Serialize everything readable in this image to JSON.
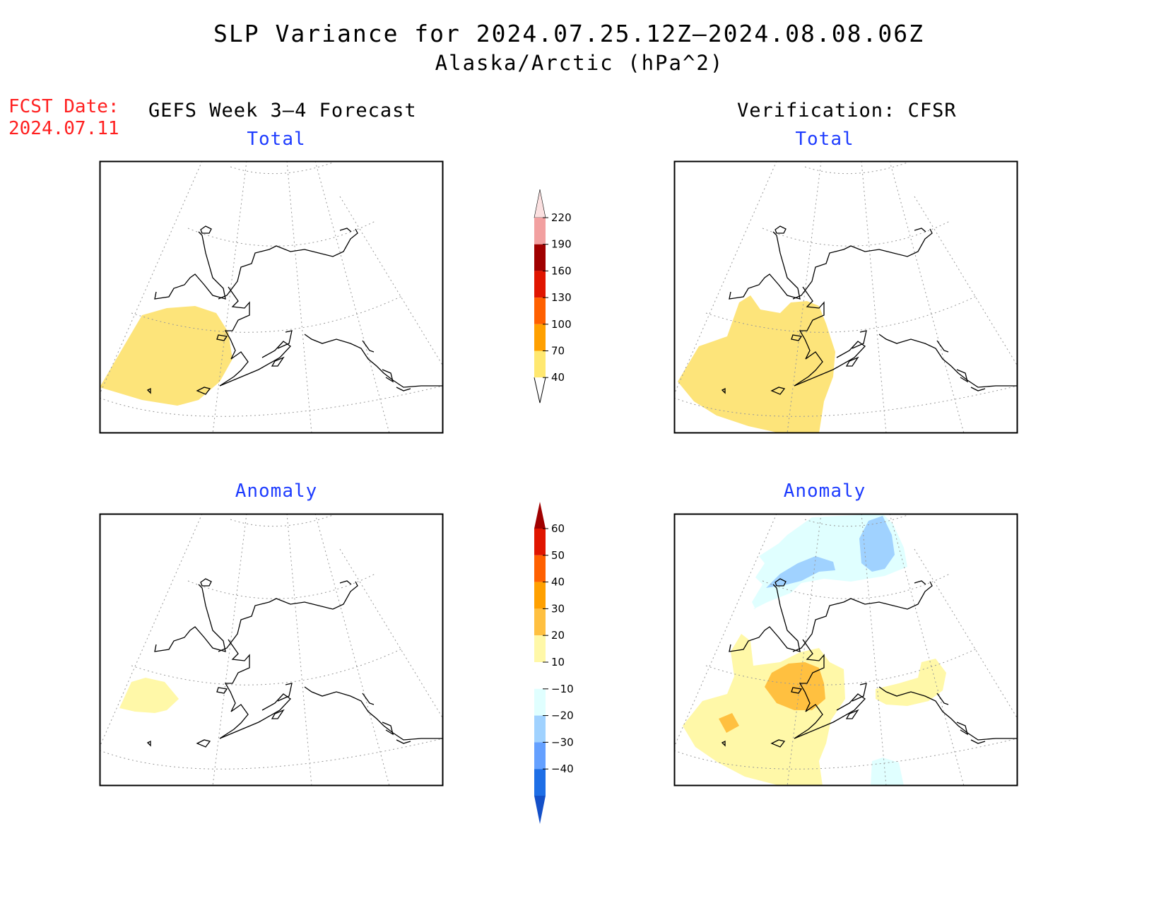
{
  "title": {
    "line1": "SLP Variance for 2024.07.25.12Z—2024.08.08.06Z",
    "line2": "Alaska/Arctic (hPa^2)"
  },
  "forecast_date": {
    "label": "FCST Date:",
    "value": "2024.07.11"
  },
  "columns": {
    "left_header": "GEFS Week 3—4 Forecast",
    "right_header": "Verification: CFSR"
  },
  "panels": [
    {
      "id": "forecast-total",
      "subtitle": "Total"
    },
    {
      "id": "verification-total",
      "subtitle": "Total"
    },
    {
      "id": "forecast-anomaly",
      "subtitle": "Anomaly"
    },
    {
      "id": "verification-anomaly",
      "subtitle": "Anomaly"
    }
  ],
  "colorbars": {
    "total": {
      "labels": [
        "220",
        "190",
        "160",
        "130",
        "100",
        "70",
        "40"
      ],
      "colors": [
        "#fbe0e0",
        "#f2a0a0",
        "#a00000",
        "#e01500",
        "#ff6000",
        "#ffa000",
        "#ffe870"
      ]
    },
    "anomaly": {
      "labels": [
        "60",
        "50",
        "40",
        "30",
        "20",
        "10",
        "−10",
        "−20",
        "−30",
        "−40"
      ],
      "colors": [
        "#a00000",
        "#e01500",
        "#ff6000",
        "#ffa000",
        "#ffc040",
        "#fff8a8",
        "#ffffff",
        "#e0ffff",
        "#a0d2ff",
        "#64a0ff",
        "#1e6ee6",
        "#1450c8"
      ]
    }
  },
  "shading_colors": {
    "total_40_70": "#fde47a",
    "anom_10_20": "#fff8a8",
    "anom_20_30": "#ffc040",
    "anom_30_40": "#ffa000",
    "anom_neg_10_20": "#e0ffff",
    "anom_neg_20_30": "#a0d2ff"
  }
}
